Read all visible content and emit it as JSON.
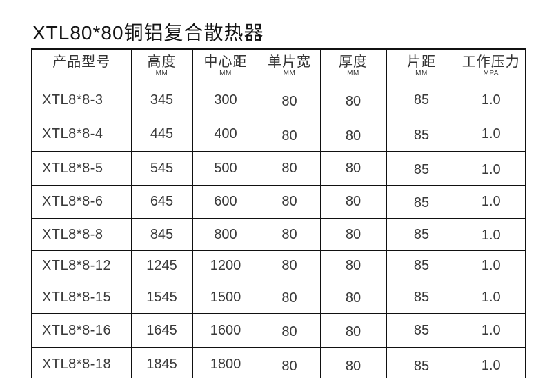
{
  "page": {
    "title": "XTL80*80铜铝复合散热器"
  },
  "colors": {
    "background": "#ffffff",
    "border": "#111111",
    "text": "#3a3a3a",
    "title": "#141414"
  },
  "table": {
    "columns": [
      {
        "label": "产品型号",
        "unit": ""
      },
      {
        "label": "高度",
        "unit": "MM"
      },
      {
        "label": "中心距",
        "unit": "MM"
      },
      {
        "label": "单片宽",
        "unit": "MM"
      },
      {
        "label": "厚度",
        "unit": "MM"
      },
      {
        "label": "片距",
        "unit": "MM"
      },
      {
        "label": "工作压力",
        "unit": "MPA"
      }
    ],
    "rows": [
      [
        "XTL8*8-3",
        "345",
        "300",
        "80",
        "80",
        "85",
        "1.0"
      ],
      [
        "XTL8*8-4",
        "445",
        "400",
        "80",
        "80",
        "85",
        "1.0"
      ],
      [
        "XTL8*8-5",
        "545",
        "500",
        "80",
        "80",
        "85",
        "1.0"
      ],
      [
        "XTL8*8-6",
        "645",
        "600",
        "80",
        "80",
        "85",
        "1.0"
      ],
      [
        "XTL8*8-8",
        "845",
        "800",
        "80",
        "80",
        "85",
        "1.0"
      ],
      [
        "XTL8*8-12",
        "1245",
        "1200",
        "80",
        "80",
        "85",
        "1.0"
      ],
      [
        "XTL8*8-15",
        "1545",
        "1500",
        "80",
        "80",
        "85",
        "1.0"
      ],
      [
        "XTL8*8-16",
        "1645",
        "1600",
        "80",
        "80",
        "85",
        "1.0"
      ],
      [
        "XTL8*8-18",
        "1845",
        "1800",
        "80",
        "80",
        "85",
        "1.0"
      ]
    ]
  }
}
